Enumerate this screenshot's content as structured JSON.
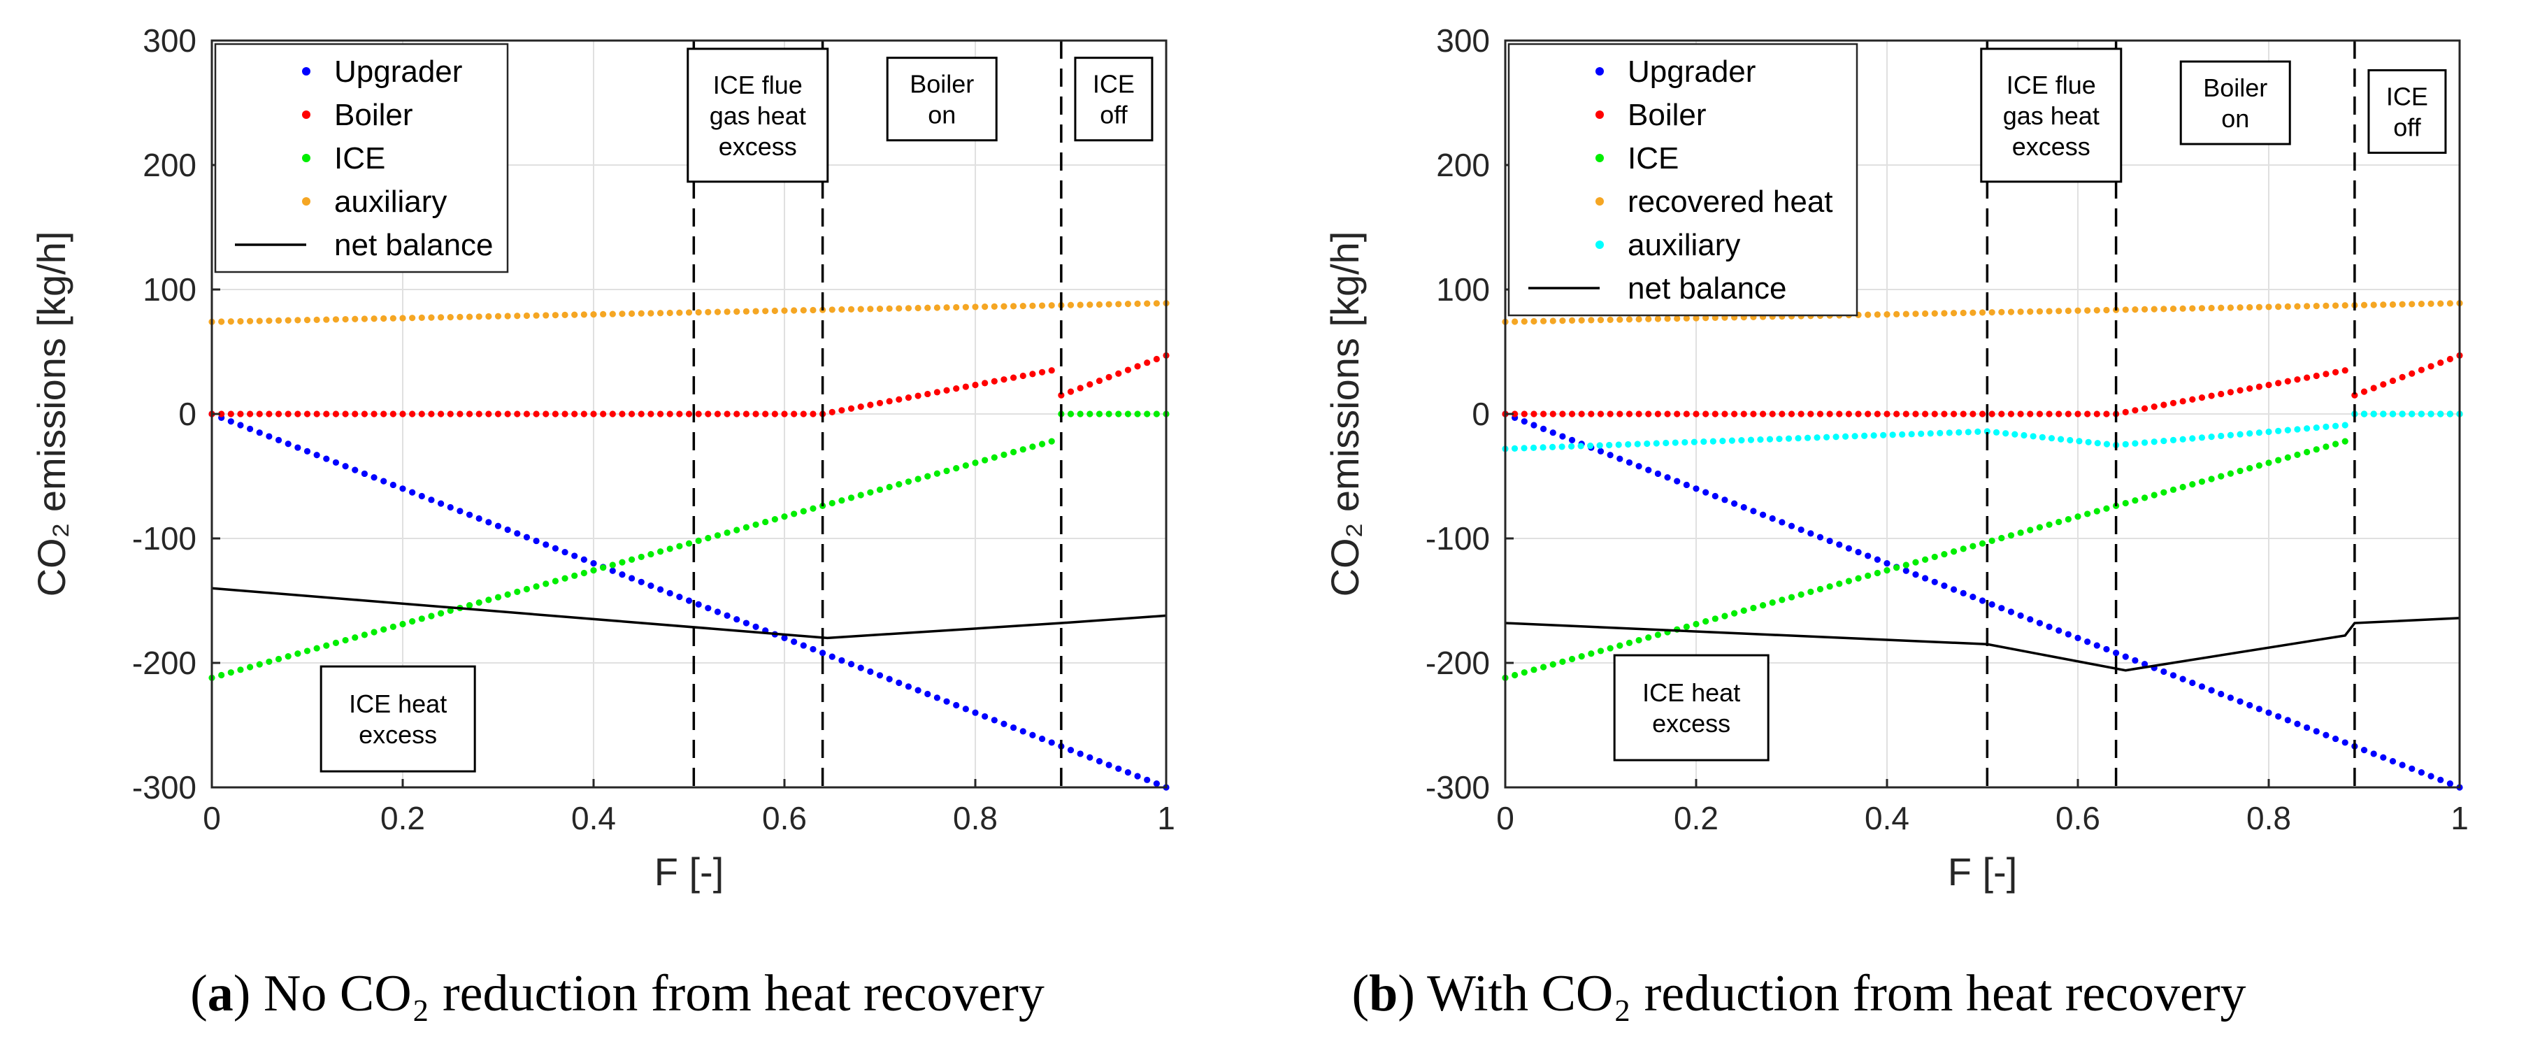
{
  "chart_data": [
    {
      "panel": "a",
      "type": "scatter",
      "caption_prefix": "(",
      "caption_letter": "a",
      "caption_text": ") No CO₂ reduction from heat recovery",
      "xlabel": "F [-]",
      "ylabel": "CO₂ emissions [kg/h]",
      "xlim": [
        0,
        1
      ],
      "ylim": [
        -300,
        300
      ],
      "xticks": [
        "0",
        "0.2",
        "0.4",
        "0.6",
        "0.8",
        "1"
      ],
      "yticks": [
        "-300",
        "-200",
        "-100",
        "0",
        "100",
        "200",
        "300"
      ],
      "grid": true,
      "legend_position": "top-left",
      "vlines": [
        0.505,
        0.64,
        0.89
      ],
      "annotations": [
        {
          "lines": [
            "ICE flue",
            "gas heat",
            "excess"
          ],
          "x": 0.572,
          "y": 240
        },
        {
          "lines": [
            "Boiler",
            "on"
          ],
          "x": 0.765,
          "y": 253
        },
        {
          "lines": [
            "ICE",
            "off"
          ],
          "x": 0.945,
          "y": 253
        },
        {
          "lines": [
            "ICE heat",
            "excess"
          ],
          "x": 0.195,
          "y": -245
        }
      ],
      "series": [
        {
          "name": "Upgrader",
          "color": "#0000ff",
          "style": "dots",
          "segments": [
            [
              [
                0,
                0
              ],
              [
                1,
                -300
              ]
            ]
          ]
        },
        {
          "name": "Boiler",
          "color": "#ff0000",
          "style": "dots",
          "segments": [
            [
              [
                0,
                0
              ],
              [
                0.64,
                0
              ],
              [
                0.88,
                35
              ]
            ],
            [
              [
                0.89,
                15
              ],
              [
                1,
                47
              ]
            ]
          ]
        },
        {
          "name": "ICE",
          "color": "#00ee00",
          "style": "dots",
          "segments": [
            [
              [
                0,
                -212
              ],
              [
                0.88,
                -22
              ]
            ],
            [
              [
                0.89,
                0
              ],
              [
                1,
                0
              ]
            ]
          ]
        },
        {
          "name": "auxiliary",
          "color": "#f5a623",
          "style": "dots",
          "segments": [
            [
              [
                0,
                74
              ],
              [
                1,
                89
              ]
            ]
          ]
        },
        {
          "name": "net balance",
          "color": "#000000",
          "style": "line",
          "segments": [
            [
              [
                0,
                -140
              ],
              [
                0.645,
                -180
              ],
              [
                0.89,
                -168
              ],
              [
                1,
                -162
              ]
            ]
          ]
        }
      ]
    },
    {
      "panel": "b",
      "type": "scatter",
      "caption_prefix": "(",
      "caption_letter": "b",
      "caption_text": ") With CO₂ reduction from heat recovery",
      "xlabel": "F [-]",
      "ylabel": "CO₂ emissions [kg/h]",
      "xlim": [
        0,
        1
      ],
      "ylim": [
        -300,
        300
      ],
      "xticks": [
        "0",
        "0.2",
        "0.4",
        "0.6",
        "0.8",
        "1"
      ],
      "yticks": [
        "-300",
        "-200",
        "-100",
        "0",
        "100",
        "200",
        "300"
      ],
      "grid": true,
      "legend_position": "top-left",
      "vlines": [
        0.505,
        0.64,
        0.89
      ],
      "annotations": [
        {
          "lines": [
            "ICE flue",
            "gas heat",
            "excess"
          ],
          "x": 0.572,
          "y": 240
        },
        {
          "lines": [
            "Boiler",
            "on"
          ],
          "x": 0.765,
          "y": 250
        },
        {
          "lines": [
            "ICE",
            "off"
          ],
          "x": 0.945,
          "y": 243
        },
        {
          "lines": [
            "ICE heat",
            "excess"
          ],
          "x": 0.195,
          "y": -236
        }
      ],
      "series": [
        {
          "name": "Upgrader",
          "color": "#0000ff",
          "style": "dots",
          "segments": [
            [
              [
                0,
                0
              ],
              [
                1,
                -300
              ]
            ]
          ]
        },
        {
          "name": "Boiler",
          "color": "#ff0000",
          "style": "dots",
          "segments": [
            [
              [
                0,
                0
              ],
              [
                0.64,
                0
              ],
              [
                0.88,
                35
              ]
            ],
            [
              [
                0.89,
                15
              ],
              [
                1,
                47
              ]
            ]
          ]
        },
        {
          "name": "ICE",
          "color": "#00ee00",
          "style": "dots",
          "segments": [
            [
              [
                0,
                -212
              ],
              [
                0.88,
                -22
              ]
            ],
            [
              [
                0.89,
                0
              ],
              [
                1,
                0
              ]
            ]
          ]
        },
        {
          "name": "recovered heat",
          "color": "#f5a623",
          "style": "dots",
          "segments": [
            [
              [
                0,
                74
              ],
              [
                1,
                89
              ]
            ]
          ]
        },
        {
          "name": "auxiliary",
          "color": "#00ffff",
          "style": "dots",
          "segments": [
            [
              [
                0,
                -28
              ],
              [
                0.505,
                -14
              ],
              [
                0.64,
                -25
              ],
              [
                0.88,
                -9
              ]
            ],
            [
              [
                0.89,
                0
              ],
              [
                1,
                0
              ]
            ]
          ]
        },
        {
          "name": "net balance",
          "color": "#000000",
          "style": "line",
          "segments": [
            [
              [
                0,
                -168
              ],
              [
                0.505,
                -185
              ],
              [
                0.65,
                -206
              ],
              [
                0.88,
                -178
              ],
              [
                0.89,
                -168
              ],
              [
                1,
                -164
              ]
            ]
          ]
        }
      ]
    }
  ]
}
